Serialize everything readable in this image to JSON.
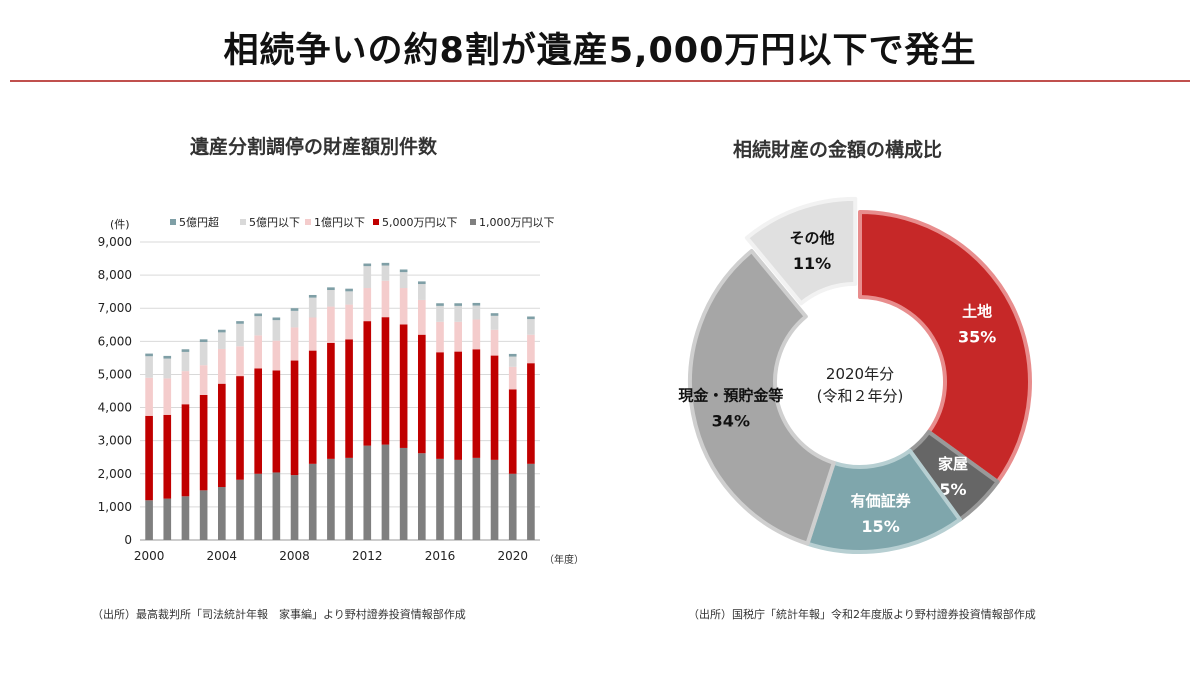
{
  "title": "相続争いの約8割が遺産5,000万円以下で発生",
  "source_left": "（出所）最高裁判所「司法統計年報　家事編」より野村證券投資情報部作成",
  "source_right": "（出所）国税庁「統計年報」令和2年度版より野村證券投資情報部作成",
  "chart_data": [
    {
      "type": "bar",
      "stacked": true,
      "title": "遺産分割調停の財産額別件数",
      "ylabel": "(件)",
      "xlabel": "（年度）",
      "ylim": [
        0,
        9000
      ],
      "y_ticks": [
        "0",
        "1,000",
        "2,000",
        "3,000",
        "4,000",
        "5,000",
        "6,000",
        "7,000",
        "8,000",
        "9,000"
      ],
      "x_tick_labels": [
        "2000",
        "2004",
        "2008",
        "2012",
        "2016",
        "2020"
      ],
      "grid": true,
      "legend_position": "top",
      "x": [
        2000,
        2001,
        2002,
        2003,
        2004,
        2005,
        2006,
        2007,
        2008,
        2009,
        2010,
        2011,
        2012,
        2013,
        2014,
        2015,
        2016,
        2017,
        2018,
        2019,
        2020,
        2021
      ],
      "series": [
        {
          "name": "1,000万円以下",
          "color": "#7f7f7f",
          "values": [
            1200,
            1250,
            1320,
            1500,
            1600,
            1820,
            2000,
            2040,
            1960,
            2300,
            2450,
            2480,
            2850,
            2880,
            2780,
            2620,
            2450,
            2420,
            2480,
            2420,
            2000,
            2300
          ]
        },
        {
          "name": "5,000万円以下",
          "color": "#c00000",
          "values": [
            2550,
            2530,
            2780,
            2880,
            3120,
            3130,
            3180,
            3080,
            3460,
            3420,
            3500,
            3580,
            3760,
            3850,
            3730,
            3580,
            3220,
            3270,
            3280,
            3150,
            2550,
            3040
          ]
        },
        {
          "name": "1億円以下",
          "color": "#f4cccc",
          "values": [
            1150,
            1100,
            1000,
            900,
            1050,
            900,
            1000,
            900,
            1000,
            1000,
            1100,
            1050,
            1000,
            1100,
            1100,
            1050,
            920,
            900,
            900,
            780,
            680,
            860
          ]
        },
        {
          "name": "5億円以下",
          "color": "#d9d9d9",
          "values": [
            650,
            600,
            580,
            700,
            500,
            680,
            580,
            620,
            500,
            600,
            500,
            400,
            660,
            460,
            480,
            480,
            480,
            480,
            420,
            420,
            310,
            470
          ]
        },
        {
          "name": "5億円超",
          "color": "#7f9fa6",
          "values": [
            80,
            80,
            80,
            80,
            80,
            80,
            80,
            80,
            80,
            80,
            80,
            80,
            80,
            80,
            80,
            80,
            80,
            80,
            80,
            80,
            80,
            80
          ]
        }
      ]
    },
    {
      "type": "pie",
      "donut": true,
      "title": "相続財産の金額の構成比",
      "center_label_line1": "2020年分",
      "center_label_line2": "(令和２年分)",
      "slices": [
        {
          "label": "土地",
          "value": 35,
          "display": "35%",
          "color": "#c62828",
          "border": "#e88d8d",
          "text_color": "#ffffff",
          "offset": false
        },
        {
          "label": "家屋",
          "value": 5,
          "display": "5%",
          "color": "#666666",
          "border": "#999999",
          "text_color": "#ffffff",
          "offset": false
        },
        {
          "label": "有価証券",
          "value": 15,
          "display": "15%",
          "color": "#7fa6ac",
          "border": "#b7cfd2",
          "text_color": "#ffffff",
          "offset": false
        },
        {
          "label": "現金・預貯金等",
          "value": 34,
          "display": "34%",
          "color": "#a6a6a6",
          "border": "#cfcfcf",
          "text_color": "#111111",
          "offset": false
        },
        {
          "label": "その他",
          "value": 11,
          "display": "11%",
          "color": "#e0e0e0",
          "border": "#f2f2f2",
          "text_color": "#111111",
          "offset": true
        }
      ]
    }
  ]
}
